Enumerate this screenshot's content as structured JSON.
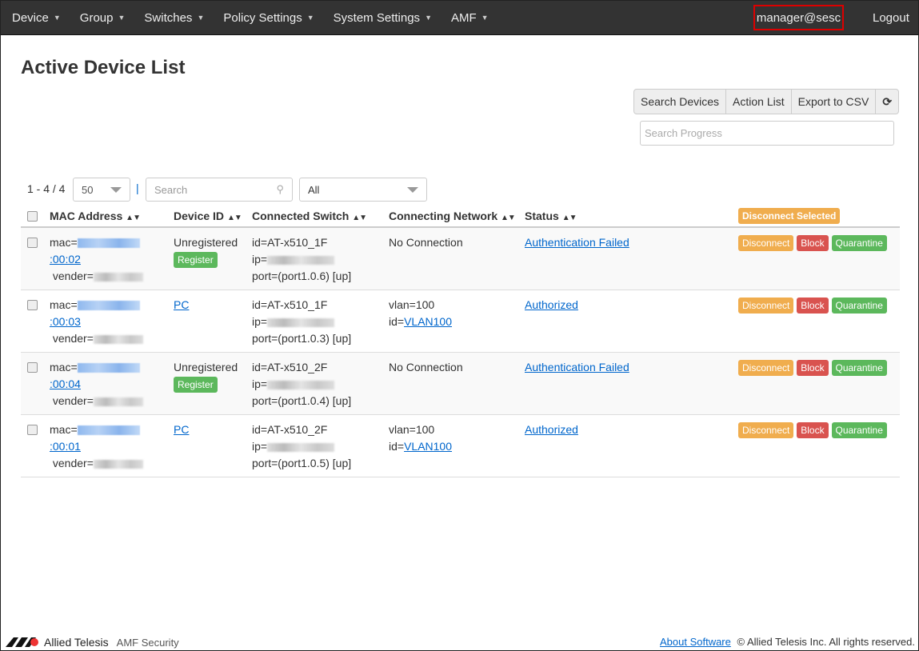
{
  "nav": {
    "items": [
      "Device",
      "Group",
      "Switches",
      "Policy Settings",
      "System Settings",
      "AMF"
    ],
    "user": "manager@sesc",
    "logout": "Logout"
  },
  "page_title": "Active Device List",
  "toolbar": {
    "search_devices": "Search Devices",
    "action_list": "Action List",
    "export_csv": "Export to CSV",
    "search_progress_placeholder": "Search Progress"
  },
  "list": {
    "range": "1 - 4 / 4",
    "page_size": "50",
    "separator": "|",
    "search_placeholder": "Search",
    "filter": "All"
  },
  "table": {
    "headers": [
      "MAC Address",
      "Device ID",
      "Connected Switch",
      "Connecting Network",
      "Status"
    ],
    "disconnect_selected": "Disconnect Selected",
    "actions": {
      "disconnect": "Disconnect",
      "block": "Block",
      "quarantine": "Quarantine"
    },
    "register_label": "Register",
    "rows": [
      {
        "mac_prefix": "mac=",
        "mac_suffix": ":00:02",
        "vender_prefix": "vender=",
        "device_id": "Unregistered",
        "device_link": false,
        "switch_id": "id=AT-x510_1F",
        "ip_prefix": "ip=",
        "port": "port=(port1.0.6) [up]",
        "network1": "No Connection",
        "network2_prefix": "",
        "network2_link": "",
        "status": "Authentication Failed"
      },
      {
        "mac_prefix": "mac=",
        "mac_suffix": ":00:03",
        "vender_prefix": "vender=",
        "device_id": "PC",
        "device_link": true,
        "switch_id": "id=AT-x510_1F",
        "ip_prefix": "ip=",
        "port": "port=(port1.0.3) [up]",
        "network1": "vlan=100",
        "network2_prefix": "id=",
        "network2_link": "VLAN100",
        "status": "Authorized"
      },
      {
        "mac_prefix": "mac=",
        "mac_suffix": ":00:04",
        "vender_prefix": "vender=",
        "device_id": "Unregistered",
        "device_link": false,
        "switch_id": "id=AT-x510_2F",
        "ip_prefix": "ip=",
        "port": "port=(port1.0.4) [up]",
        "network1": "No Connection",
        "network2_prefix": "",
        "network2_link": "",
        "status": "Authentication Failed"
      },
      {
        "mac_prefix": "mac=",
        "mac_suffix": ":00:01",
        "vender_prefix": "vender=",
        "device_id": "PC",
        "device_link": true,
        "switch_id": "id=AT-x510_2F",
        "ip_prefix": "ip=",
        "port": "port=(port1.0.5) [up]",
        "network1": "vlan=100",
        "network2_prefix": "id=",
        "network2_link": "VLAN100",
        "status": "Authorized"
      }
    ]
  },
  "footer": {
    "logo": "Allied Telesis",
    "product": "AMF Security",
    "about": "About Software",
    "copyright": "© Allied Telesis Inc. All rights reserved."
  }
}
